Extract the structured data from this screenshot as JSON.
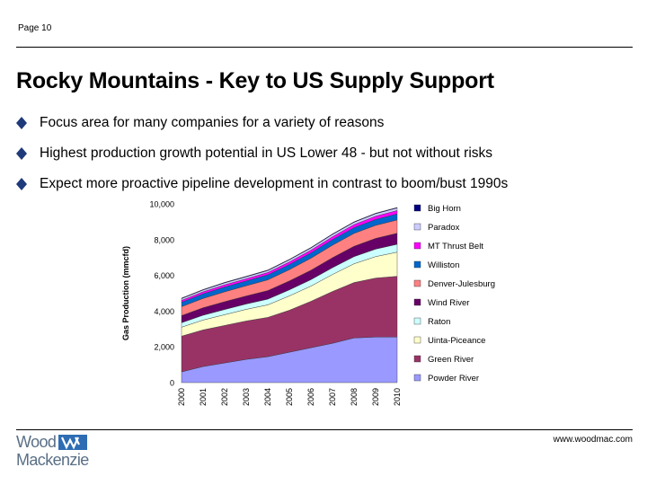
{
  "page_number": "Page 10",
  "title": "Rocky Mountains - Key to US Supply Support",
  "bullets": [
    "Focus area for many companies for a variety of reasons",
    "Highest production growth potential in US Lower 48 - but not without risks",
    "Expect more proactive pipeline development in contrast to boom/bust 1990s"
  ],
  "colors": {
    "bullet": "#1f3a7a",
    "text": "#000000",
    "logo": "#5a6f86",
    "logo_mark": "#2e6db3"
  },
  "footer": {
    "logo_line1": "Wood",
    "logo_line2": "Mackenzie",
    "url": "www.woodmac.com"
  },
  "chart_data": {
    "type": "area",
    "stacked": true,
    "x": [
      "2000",
      "2001",
      "2002",
      "2003",
      "2004",
      "2005",
      "2006",
      "2007",
      "2008",
      "2009",
      "2010"
    ],
    "ylabel": "Gas Production (mmcfd)",
    "xlabel": "",
    "ylim": [
      0,
      10000
    ],
    "yticks": [
      0,
      2000,
      4000,
      6000,
      8000,
      10000
    ],
    "ytick_labels": [
      "0",
      "2,000",
      "4,000",
      "6,000",
      "8,000",
      "10,000"
    ],
    "grid": false,
    "legend_position": "right",
    "series": [
      {
        "name": "Powder River",
        "color": "#9999ff",
        "values": [
          600,
          900,
          1100,
          1300,
          1450,
          1700,
          1950,
          2200,
          2500,
          2550,
          2550
        ]
      },
      {
        "name": "Green River",
        "color": "#993366",
        "values": [
          2000,
          2050,
          2100,
          2150,
          2200,
          2350,
          2600,
          2900,
          3100,
          3300,
          3400
        ]
      },
      {
        "name": "Uinta-Piceance",
        "color": "#ffffcc",
        "values": [
          500,
          550,
          600,
          650,
          700,
          800,
          850,
          950,
          1050,
          1200,
          1350
        ]
      },
      {
        "name": "Raton",
        "color": "#ccffff",
        "values": [
          250,
          270,
          290,
          300,
          320,
          340,
          360,
          380,
          400,
          420,
          440
        ]
      },
      {
        "name": "Wind River",
        "color": "#660066",
        "values": [
          400,
          420,
          440,
          450,
          480,
          500,
          530,
          560,
          580,
          600,
          620
        ]
      },
      {
        "name": "Denver-Julesburg",
        "color": "#ff8080",
        "values": [
          500,
          520,
          550,
          570,
          600,
          630,
          670,
          700,
          720,
          730,
          740
        ]
      },
      {
        "name": "Williston",
        "color": "#0066cc",
        "values": [
          250,
          260,
          270,
          270,
          280,
          290,
          300,
          310,
          320,
          330,
          340
        ]
      },
      {
        "name": "MT Thrust Belt",
        "color": "#ff00ff",
        "values": [
          100,
          110,
          120,
          120,
          130,
          140,
          150,
          160,
          170,
          180,
          190
        ]
      },
      {
        "name": "Paradox",
        "color": "#ccccff",
        "values": [
          100,
          100,
          110,
          110,
          110,
          120,
          120,
          130,
          130,
          140,
          140
        ]
      },
      {
        "name": "Big Horn",
        "color": "#000080",
        "values": [
          30,
          30,
          30,
          30,
          30,
          30,
          30,
          30,
          30,
          30,
          30
        ]
      }
    ]
  }
}
